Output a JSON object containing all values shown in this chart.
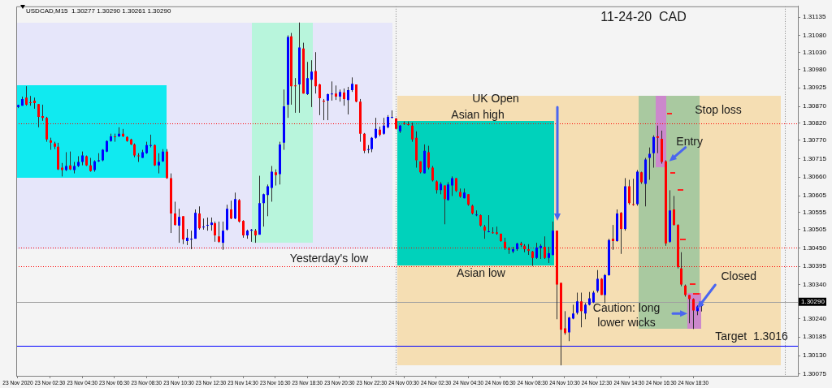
{
  "chart_data": {
    "type": "candlestick",
    "title": "11-24-20  CAD",
    "subtitle": "USDCAD,M15  1.30277 1.30290 1.30261 1.30290",
    "xlim": [
      "2020-11-23T00:24",
      "2020-11-25T01:00"
    ],
    "ylim": [
      1.3007,
      1.31167
    ],
    "xticks": [
      {
        "value": "2020-11-23T00:30",
        "label": "23 Nov 2020"
      },
      {
        "value": "2020-11-23T02:30",
        "label": "23 Nov 02:30"
      },
      {
        "value": "2020-11-23T04:30",
        "label": "23 Nov 04:30"
      },
      {
        "value": "2020-11-23T06:30",
        "label": "23 Nov 06:30"
      },
      {
        "value": "2020-11-23T08:30",
        "label": "23 Nov 08:30"
      },
      {
        "value": "2020-11-23T10:30",
        "label": "23 Nov 10:30"
      },
      {
        "value": "2020-11-23T12:30",
        "label": "23 Nov 12:30"
      },
      {
        "value": "2020-11-23T14:30",
        "label": "23 Nov 14:30"
      },
      {
        "value": "2020-11-23T16:30",
        "label": "23 Nov 16:30"
      },
      {
        "value": "2020-11-23T18:30",
        "label": "23 Nov 18:30"
      },
      {
        "value": "2020-11-23T20:30",
        "label": "23 Nov 20:30"
      },
      {
        "value": "2020-11-23T22:30",
        "label": "23 Nov 22:30"
      },
      {
        "value": "2020-11-24T00:30",
        "label": "24 Nov 00:30"
      },
      {
        "value": "2020-11-24T02:30",
        "label": "24 Nov 02:30"
      },
      {
        "value": "2020-11-24T04:30",
        "label": "24 Nov 04:30"
      },
      {
        "value": "2020-11-24T06:30",
        "label": "24 Nov 06:30"
      },
      {
        "value": "2020-11-24T08:30",
        "label": "24 Nov 08:30"
      },
      {
        "value": "2020-11-24T10:30",
        "label": "24 Nov 10:30"
      },
      {
        "value": "2020-11-24T12:30",
        "label": "24 Nov 12:30"
      },
      {
        "value": "2020-11-24T14:30",
        "label": "24 Nov 14:30"
      },
      {
        "value": "2020-11-24T16:30",
        "label": "24 Nov 16:30"
      },
      {
        "value": "2020-11-24T18:30",
        "label": "24 Nov 18:30"
      }
    ],
    "yticks": [
      1.31135,
      {
        "value": 1.3108,
        "label": "1.31080"
      },
      {
        "value": 1.3103,
        "label": "1.31030"
      },
      {
        "value": 1.3098,
        "label": "1.30980"
      },
      1.30925,
      {
        "value": 1.3087,
        "label": "1.30870"
      },
      {
        "value": 1.3082,
        "label": "1.30820"
      },
      {
        "value": 1.3077,
        "label": "1.30770"
      },
      1.30715,
      {
        "value": 1.3066,
        "label": "1.30660"
      },
      1.30605,
      1.30555,
      1.30505,
      {
        "value": 1.3045,
        "label": "1.30450"
      },
      1.30395,
      {
        "value": 1.3034,
        "label": "1.30340"
      },
      {
        "value": 1.3024,
        "label": "1.30240"
      },
      1.30185,
      {
        "value": 1.3013,
        "label": "1.30130"
      },
      1.30075
    ],
    "ref_lines": [
      {
        "axis": "x",
        "value": "2020-11-24T00:00",
        "color": "#808080",
        "line_style": "dotted"
      },
      {
        "axis": "x",
        "value": "2020-11-25T00:10",
        "color": "#808080",
        "line_style": "dotted"
      },
      {
        "axis": "y",
        "value": 1.3082,
        "label": "Asian high",
        "color": "#ff0000",
        "line_style": "dotted"
      },
      {
        "axis": "y",
        "value": 1.3045,
        "label": "Yesterday's low",
        "color": "#ff0000",
        "line_style": "dotted"
      },
      {
        "axis": "y",
        "value": 1.30395,
        "label": "Asian low",
        "color": "#ff0000",
        "line_style": "dotted"
      },
      {
        "axis": "y",
        "value": 1.3029,
        "label": "1.30290",
        "color": "#a0a0a0",
        "line_style": "solid"
      },
      {
        "axis": "y",
        "value": 1.3016,
        "label": "Target  1.3016",
        "color": "#0000ff",
        "line_style": "solid"
      }
    ],
    "annotations": [
      "UK Open",
      "Stop loss",
      {
        "text": "Entry",
        "x": "2020-11-24T17:00",
        "y": 1.30707
      },
      {
        "text": "Caution: long\nlower wicks",
        "x": "2020-11-24T18:08",
        "y": 1.30255
      },
      {
        "text": "Closed",
        "x": "2020-11-24T18:45",
        "y": 1.3027
      }
    ],
    "series": [
      {
        "x": [
          "2020-11-23T00:30",
          "2020-11-23T00:45",
          "2020-11-23T01:00",
          "2020-11-23T01:15",
          "2020-11-23T01:30",
          "2020-11-23T01:45",
          "2020-11-23T02:00",
          "2020-11-23T02:15",
          "2020-11-23T02:30",
          "2020-11-23T02:45",
          "2020-11-23T03:00",
          "2020-11-23T03:15",
          "2020-11-23T03:30",
          "2020-11-23T03:45",
          "2020-11-23T04:00",
          "2020-11-23T04:15",
          "2020-11-23T04:30",
          "2020-11-23T04:45",
          "2020-11-23T05:00",
          "2020-11-23T05:15",
          "2020-11-23T05:30",
          "2020-11-23T05:45",
          "2020-11-23T06:00",
          "2020-11-23T06:15",
          "2020-11-23T06:30",
          "2020-11-23T06:45",
          "2020-11-23T07:00",
          "2020-11-23T07:15",
          "2020-11-23T07:30",
          "2020-11-23T07:45",
          "2020-11-23T08:00",
          "2020-11-23T08:15",
          "2020-11-23T08:30",
          "2020-11-23T08:45",
          "2020-11-23T09:00",
          "2020-11-23T09:15",
          "2020-11-23T09:30",
          "2020-11-23T09:45",
          "2020-11-23T10:00",
          "2020-11-23T10:15",
          "2020-11-23T10:30",
          "2020-11-23T10:45",
          "2020-11-23T11:00",
          "2020-11-23T11:15",
          "2020-11-23T11:30",
          "2020-11-23T11:45",
          "2020-11-23T12:00",
          "2020-11-23T12:15",
          "2020-11-23T12:30",
          "2020-11-23T12:45",
          "2020-11-23T13:00",
          "2020-11-23T13:15",
          "2020-11-23T13:30",
          "2020-11-23T13:45",
          "2020-11-23T14:00",
          "2020-11-23T14:15",
          "2020-11-23T14:30",
          "2020-11-23T14:45",
          "2020-11-23T15:00",
          "2020-11-23T15:15",
          "2020-11-23T15:30",
          "2020-11-23T15:45",
          "2020-11-23T16:00",
          "2020-11-23T16:15",
          "2020-11-23T16:30",
          "2020-11-23T16:45",
          "2020-11-23T17:00",
          "2020-11-23T17:15",
          "2020-11-23T17:30",
          "2020-11-23T17:45",
          "2020-11-23T18:00",
          "2020-11-23T18:15",
          "2020-11-23T18:30",
          "2020-11-23T18:45",
          "2020-11-23T19:00",
          "2020-11-23T19:15",
          "2020-11-23T19:30",
          "2020-11-23T19:45",
          "2020-11-23T20:00",
          "2020-11-23T20:15",
          "2020-11-23T20:30",
          "2020-11-23T20:45",
          "2020-11-23T21:00",
          "2020-11-23T21:15",
          "2020-11-23T21:30",
          "2020-11-23T21:45",
          "2020-11-23T22:00",
          "2020-11-23T22:15",
          "2020-11-23T22:30",
          "2020-11-23T22:45",
          "2020-11-23T23:00",
          "2020-11-23T23:15",
          "2020-11-23T23:30",
          "2020-11-23T23:45",
          "2020-11-24T00:00",
          "2020-11-24T00:15",
          "2020-11-24T00:30",
          "2020-11-24T00:45",
          "2020-11-24T01:00",
          "2020-11-24T01:15",
          "2020-11-24T01:30",
          "2020-11-24T01:45",
          "2020-11-24T02:00",
          "2020-11-24T02:15",
          "2020-11-24T02:30",
          "2020-11-24T02:45",
          "2020-11-24T03:00",
          "2020-11-24T03:15",
          "2020-11-24T03:30",
          "2020-11-24T03:45",
          "2020-11-24T04:00",
          "2020-11-24T04:15",
          "2020-11-24T04:30",
          "2020-11-24T04:45",
          "2020-11-24T05:00",
          "2020-11-24T05:15",
          "2020-11-24T05:30",
          "2020-11-24T05:45",
          "2020-11-24T06:00",
          "2020-11-24T06:15",
          "2020-11-24T06:30",
          "2020-11-24T06:45",
          "2020-11-24T07:00",
          "2020-11-24T07:15",
          "2020-11-24T07:30",
          "2020-11-24T07:45",
          "2020-11-24T08:00",
          "2020-11-24T08:15",
          "2020-11-24T08:30",
          "2020-11-24T08:45",
          "2020-11-24T09:00",
          "2020-11-24T09:15",
          "2020-11-24T09:30",
          "2020-11-24T09:45",
          "2020-11-24T10:00",
          "2020-11-24T10:15",
          "2020-11-24T10:30",
          "2020-11-24T10:45",
          "2020-11-24T11:00",
          "2020-11-24T11:15",
          "2020-11-24T11:30",
          "2020-11-24T11:45",
          "2020-11-24T12:00",
          "2020-11-24T12:15",
          "2020-11-24T12:30",
          "2020-11-24T12:45",
          "2020-11-24T13:00",
          "2020-11-24T13:15",
          "2020-11-24T13:30",
          "2020-11-24T13:45",
          "2020-11-24T14:00",
          "2020-11-24T14:15",
          "2020-11-24T14:30",
          "2020-11-24T14:45",
          "2020-11-24T15:00",
          "2020-11-24T15:15",
          "2020-11-24T15:30",
          "2020-11-24T15:45",
          "2020-11-24T16:00",
          "2020-11-24T16:15",
          "2020-11-24T16:30",
          "2020-11-24T16:45",
          "2020-11-24T17:00",
          "2020-11-24T17:15",
          "2020-11-24T17:30",
          "2020-11-24T17:45",
          "2020-11-24T18:00",
          "2020-11-24T18:15",
          "2020-11-24T18:30",
          "2020-11-24T18:45",
          "2020-11-24T19:00"
        ],
        "ohlc": [
          [
            1.30868,
            1.30875,
            1.30865,
            1.30874
          ],
          [
            1.30872,
            1.30899,
            1.30872,
            1.30892
          ],
          [
            1.30896,
            1.3093,
            1.30872,
            1.30875
          ],
          [
            1.30882,
            1.30901,
            1.30872,
            1.30881
          ],
          [
            1.30887,
            1.30896,
            1.30863,
            1.3088
          ],
          [
            1.30877,
            1.30877,
            1.30808,
            1.30839
          ],
          [
            1.30841,
            1.30875,
            1.30827,
            1.30836
          ],
          [
            1.30836,
            1.30839,
            1.30765,
            1.30772
          ],
          [
            1.30769,
            1.30777,
            1.30741,
            1.30762
          ],
          [
            1.3076,
            1.30765,
            1.30743,
            1.3075
          ],
          [
            1.3075,
            1.30762,
            1.30681,
            1.30683
          ],
          [
            1.30688,
            1.30702,
            1.30662,
            1.30681
          ],
          [
            1.30681,
            1.30734,
            1.30678,
            1.30693
          ],
          [
            1.30695,
            1.30736,
            1.30681,
            1.30683
          ],
          [
            1.30681,
            1.30705,
            1.30671,
            1.30693
          ],
          [
            1.30693,
            1.30722,
            1.3069,
            1.30705
          ],
          [
            1.30705,
            1.30736,
            1.30695,
            1.30724
          ],
          [
            1.30722,
            1.30724,
            1.30693,
            1.30695
          ],
          [
            1.30695,
            1.30717,
            1.30676,
            1.30678
          ],
          [
            1.30681,
            1.3071,
            1.30676,
            1.30707
          ],
          [
            1.30707,
            1.30731,
            1.30705,
            1.3071
          ],
          [
            1.3071,
            1.30743,
            1.30707,
            1.30741
          ],
          [
            1.30736,
            1.30769,
            1.30734,
            1.30767
          ],
          [
            1.30767,
            1.30789,
            1.30765,
            1.30781
          ],
          [
            1.30781,
            1.30789,
            1.30765,
            1.30779
          ],
          [
            1.30781,
            1.30808,
            1.30779,
            1.30789
          ],
          [
            1.30789,
            1.30803,
            1.30779,
            1.30781
          ],
          [
            1.30779,
            1.30781,
            1.30765,
            1.30767
          ],
          [
            1.30772,
            1.30774,
            1.30755,
            1.30757
          ],
          [
            1.30757,
            1.3076,
            1.30719,
            1.30724
          ],
          [
            1.30724,
            1.30731,
            1.30705,
            1.30722
          ],
          [
            1.30717,
            1.30741,
            1.30717,
            1.30734
          ],
          [
            1.30731,
            1.30765,
            1.30729,
            1.30755
          ],
          [
            1.30755,
            1.30786,
            1.30748,
            1.30755
          ],
          [
            1.30755,
            1.30757,
            1.30693,
            1.30695
          ],
          [
            1.30695,
            1.30731,
            1.30671,
            1.30705
          ],
          [
            1.30707,
            1.30743,
            1.30705,
            1.30736
          ],
          [
            1.30736,
            1.30743,
            1.30655,
            1.30657
          ],
          [
            1.30657,
            1.30671,
            1.30494,
            1.30552
          ],
          [
            1.30552,
            1.30587,
            1.30516,
            1.30518
          ],
          [
            1.30516,
            1.30566,
            1.30465,
            1.30542
          ],
          [
            1.30544,
            1.30544,
            1.30461,
            1.30475
          ],
          [
            1.3047,
            1.30506,
            1.30458,
            1.3048
          ],
          [
            1.30477,
            1.30501,
            1.30446,
            1.30477
          ],
          [
            1.30477,
            1.30564,
            1.30477,
            1.30554
          ],
          [
            1.30552,
            1.30573,
            1.30504,
            1.30508
          ],
          [
            1.30513,
            1.30537,
            1.30504,
            1.30513
          ],
          [
            1.30518,
            1.3054,
            1.30501,
            1.30518
          ],
          [
            1.30518,
            1.3054,
            1.30501,
            1.30525
          ],
          [
            1.30523,
            1.30528,
            1.30468,
            1.30487
          ],
          [
            1.30484,
            1.30528,
            1.30465,
            1.30468
          ],
          [
            1.30465,
            1.30528,
            1.30444,
            1.30501
          ],
          [
            1.30504,
            1.30578,
            1.30501,
            1.30566
          ],
          [
            1.30564,
            1.3059,
            1.30535,
            1.30537
          ],
          [
            1.30537,
            1.30614,
            1.30535,
            1.30595
          ],
          [
            1.30592,
            1.30595,
            1.30525,
            1.30528
          ],
          [
            1.3053,
            1.30532,
            1.3048,
            1.30487
          ],
          [
            1.30487,
            1.30504,
            1.30477,
            1.30501
          ],
          [
            1.30501,
            1.30506,
            1.30468,
            1.30504
          ],
          [
            1.30501,
            1.30506,
            1.30465,
            1.30487
          ],
          [
            1.30489,
            1.30664,
            1.30489,
            1.30583
          ],
          [
            1.30583,
            1.30611,
            1.30513,
            1.30609
          ],
          [
            1.30607,
            1.30638,
            1.30544,
            1.30633
          ],
          [
            1.30628,
            1.30693,
            1.30587,
            1.30676
          ],
          [
            1.30674,
            1.30683,
            1.30635,
            1.30666
          ],
          [
            1.30669,
            1.30765,
            1.30638,
            1.30757
          ],
          [
            1.30762,
            1.3092,
            1.30741,
            1.3087
          ],
          [
            1.30875,
            1.31081,
            1.30836,
            1.31076
          ],
          [
            1.31078,
            1.31088,
            1.30875,
            1.3093
          ],
          [
            1.30932,
            1.30954,
            1.30851,
            1.3093
          ],
          [
            1.30935,
            1.31119,
            1.30851,
            1.31045
          ],
          [
            1.31042,
            1.31059,
            1.30908,
            1.30908
          ],
          [
            1.30906,
            1.31002,
            1.30904,
            1.30954
          ],
          [
            1.30949,
            1.31007,
            1.30868,
            1.30973
          ],
          [
            1.30975,
            1.31031,
            1.30908,
            1.3093
          ],
          [
            1.30935,
            1.30937,
            1.30844,
            1.30894
          ],
          [
            1.30887,
            1.30892,
            1.30829,
            1.30884
          ],
          [
            1.30887,
            1.30908,
            1.30829,
            1.30906
          ],
          [
            1.30908,
            1.30944,
            1.30887,
            1.30908
          ],
          [
            1.30908,
            1.30932,
            1.30889,
            1.30899
          ],
          [
            1.30899,
            1.3092,
            1.30884,
            1.30913
          ],
          [
            1.30911,
            1.30923,
            1.30872,
            1.30892
          ],
          [
            1.30889,
            1.30928,
            1.30846,
            1.30918
          ],
          [
            1.30918,
            1.30956,
            1.30913,
            1.30937
          ],
          [
            1.30935,
            1.30935,
            1.30882,
            1.30884
          ],
          [
            1.30884,
            1.30892,
            1.30765,
            1.30789
          ],
          [
            1.30789,
            1.30791,
            1.30731,
            1.30738
          ],
          [
            1.30743,
            1.30755,
            1.30731,
            1.30743
          ],
          [
            1.30743,
            1.30779,
            1.30734,
            1.30777
          ],
          [
            1.30777,
            1.30836,
            1.30774,
            1.30803
          ],
          [
            1.30801,
            1.3081,
            1.30781,
            1.30786
          ],
          [
            1.30789,
            1.30836,
            1.30786,
            1.30813
          ],
          [
            1.30808,
            1.30844,
            1.30805,
            1.30839
          ],
          [
            1.30839,
            1.30858,
            1.30834,
            1.30839
          ],
          [
            1.30834,
            1.30836,
            1.30801,
            1.30803
          ],
          [
            1.30796,
            1.30815,
            1.30791,
            1.30813
          ],
          [
            1.3082,
            1.30825,
            1.30815,
            1.30817
          ],
          [
            1.30817,
            1.30825,
            1.30813,
            1.30815
          ],
          [
            1.30813,
            1.30822,
            1.30765,
            1.30772
          ],
          [
            1.30777,
            1.30796,
            1.30688,
            1.3071
          ],
          [
            1.30707,
            1.30707,
            1.30671,
            1.30674
          ],
          [
            1.30671,
            1.30757,
            1.30671,
            1.30738
          ],
          [
            1.30734,
            1.30753,
            1.30683,
            1.30688
          ],
          [
            1.30688,
            1.30693,
            1.30647,
            1.3065
          ],
          [
            1.30647,
            1.3065,
            1.30611,
            1.30621
          ],
          [
            1.30621,
            1.30645,
            1.30609,
            1.3064
          ],
          [
            1.30635,
            1.30635,
            1.3052,
            1.30595
          ],
          [
            1.30592,
            1.30645,
            1.3059,
            1.30638
          ],
          [
            1.30635,
            1.30662,
            1.30604,
            1.30657
          ],
          [
            1.30657,
            1.30657,
            1.30616,
            1.30619
          ],
          [
            1.30616,
            1.30626,
            1.30599,
            1.30602
          ],
          [
            1.30597,
            1.30626,
            1.30597,
            1.30614
          ],
          [
            1.30609,
            1.30609,
            1.30575,
            1.30578
          ],
          [
            1.30575,
            1.30578,
            1.30549,
            1.30552
          ],
          [
            1.30549,
            1.30561,
            1.30544,
            1.30549
          ],
          [
            1.30547,
            1.30549,
            1.30513,
            1.30516
          ],
          [
            1.30513,
            1.30518,
            1.30477,
            1.30501
          ],
          [
            1.30499,
            1.30547,
            1.30496,
            1.30499
          ],
          [
            1.30496,
            1.30511,
            1.30492,
            1.30494
          ],
          [
            1.30496,
            1.30513,
            1.30489,
            1.30492
          ],
          [
            1.30492,
            1.30492,
            1.30468,
            1.3047
          ],
          [
            1.30468,
            1.3048,
            1.30444,
            1.30449
          ],
          [
            1.30449,
            1.30453,
            1.30432,
            1.30444
          ],
          [
            1.30439,
            1.30453,
            1.30434,
            1.30446
          ],
          [
            1.30446,
            1.30465,
            1.30441,
            1.30463
          ],
          [
            1.30463,
            1.30468,
            1.30453,
            1.30458
          ],
          [
            1.30456,
            1.30461,
            1.30437,
            1.30446
          ],
          [
            1.30446,
            1.30461,
            1.30429,
            1.30441
          ],
          [
            1.30439,
            1.30441,
            1.30396,
            1.3042
          ],
          [
            1.3042,
            1.30465,
            1.30417,
            1.30451
          ],
          [
            1.30449,
            1.30461,
            1.30417,
            1.30456
          ],
          [
            1.30453,
            1.30484,
            1.30417,
            1.3042
          ],
          [
            1.3042,
            1.30453,
            1.30405,
            1.30434
          ],
          [
            1.30429,
            1.30528,
            1.30427,
            1.30501
          ],
          [
            1.30501,
            1.30501,
            1.30238,
            1.30341
          ],
          [
            1.30346,
            1.30346,
            1.30101,
            1.30207
          ],
          [
            1.30211,
            1.30262,
            1.30192,
            1.30197
          ],
          [
            1.30199,
            1.30245,
            1.30173,
            1.30243
          ],
          [
            1.3024,
            1.30281,
            1.30238,
            1.30255
          ],
          [
            1.30257,
            1.30317,
            1.30252,
            1.30291
          ],
          [
            1.30291,
            1.30317,
            1.30214,
            1.30262
          ],
          [
            1.30255,
            1.30286,
            1.30238,
            1.30281
          ],
          [
            1.30281,
            1.30319,
            1.30279,
            1.303
          ],
          [
            1.30288,
            1.30322,
            1.30286,
            1.30317
          ],
          [
            1.30322,
            1.30384,
            1.30317,
            1.30358
          ],
          [
            1.30358,
            1.3036,
            1.3031,
            1.3031
          ],
          [
            1.3031,
            1.30372,
            1.30286,
            1.30369
          ],
          [
            1.30369,
            1.30477,
            1.30367,
            1.30473
          ],
          [
            1.30477,
            1.30518,
            1.30444,
            1.3047
          ],
          [
            1.3047,
            1.30564,
            1.30468,
            1.30552
          ],
          [
            1.30554,
            1.30556,
            1.30432,
            1.30506
          ],
          [
            1.30506,
            1.30657,
            1.30501,
            1.30633
          ],
          [
            1.30633,
            1.30652,
            1.30578,
            1.30583
          ],
          [
            1.3058,
            1.30655,
            1.30575,
            1.30578
          ],
          [
            1.3058,
            1.30681,
            1.30575,
            1.30676
          ],
          [
            1.30674,
            1.30676,
            1.3064,
            1.30645
          ],
          [
            1.3064,
            1.30717,
            1.30573,
            1.30712
          ],
          [
            1.30717,
            1.30748,
            1.30652,
            1.30729
          ],
          [
            1.30731,
            1.30784,
            1.30688,
            1.30779
          ],
          [
            1.30781,
            1.30813,
            1.30731,
            1.30777
          ],
          [
            1.30774,
            1.30798,
            1.307,
            1.30705
          ],
          [
            1.30707,
            1.3071,
            1.30456,
            1.30463
          ],
          [
            1.30468,
            1.30621,
            1.30465,
            1.30561
          ],
          [
            1.30564,
            1.30604,
            1.30516,
            1.30518
          ],
          [
            1.30518,
            1.3052,
            1.30389,
            1.30393
          ],
          [
            1.30389,
            1.30437,
            1.30336,
            1.30341
          ],
          [
            1.30338,
            1.30341,
            1.30305,
            1.3031
          ],
          [
            1.3031,
            1.3031,
            1.30226,
            1.30298
          ],
          [
            1.30298,
            1.303,
            1.30209,
            1.30264
          ],
          [
            1.30262,
            1.30279,
            1.3025,
            1.30276
          ],
          [
            1.30277,
            1.3029,
            1.30261,
            1.3029
          ]
        ],
        "colors": [
          "#0000ff",
          "#0000ff",
          "#ff0000",
          "#ff0000",
          "#ff0000",
          "#ff0000",
          "#ff0000",
          "#ff0000",
          "#ff0000",
          "#ff0000",
          "#ff0000",
          "#ff0000",
          "#0000ff",
          "#ff0000",
          "#0000ff",
          "#0000ff",
          "#0000ff",
          "#ff0000",
          "#ff0000",
          "#0000ff",
          "#0000ff",
          "#0000ff",
          "#0000ff",
          "#0000ff",
          "#ff0000",
          "#0000ff",
          "#ff0000",
          "#ff0000",
          "#ff0000",
          "#ff0000",
          "#ff0000",
          "#0000ff",
          "#0000ff",
          "#0000ff",
          "#ff0000",
          "#0000ff",
          "#0000ff",
          "#ff0000",
          "#ff0000",
          "#ff0000",
          "#0000ff",
          "#ff0000",
          "#0000ff",
          "#0000ff",
          "#0000ff",
          "#ff0000",
          "#0000ff",
          "#0000ff",
          "#0000ff",
          "#ff0000",
          "#ff0000",
          "#0000ff",
          "#0000ff",
          "#ff0000",
          "#0000ff",
          "#ff0000",
          "#ff0000",
          "#0000ff",
          "#0000ff",
          "#ff0000",
          "#0000ff",
          "#0000ff",
          "#0000ff",
          "#0000ff",
          "#ff0000",
          "#0000ff",
          "#0000ff",
          "#0000ff",
          "#ff0000",
          "#ff0000",
          "#0000ff",
          "#ff0000",
          "#0000ff",
          "#0000ff",
          "#ff0000",
          "#ff0000",
          "#ff0000",
          "#0000ff",
          "#0000ff",
          "#ff0000",
          "#0000ff",
          "#ff0000",
          "#0000ff",
          "#0000ff",
          "#ff0000",
          "#ff0000",
          "#ff0000",
          "#0000ff",
          "#0000ff",
          "#0000ff",
          "#ff0000",
          "#0000ff",
          "#0000ff",
          "#0000ff",
          "#ff0000",
          "#0000ff",
          "#ff0000",
          "#ff0000",
          "#ff0000",
          "#ff0000",
          "#ff0000",
          "#0000ff",
          "#ff0000",
          "#ff0000",
          "#ff0000",
          "#0000ff",
          "#ff0000",
          "#0000ff",
          "#0000ff",
          "#ff0000",
          "#ff0000",
          "#0000ff",
          "#ff0000",
          "#ff0000",
          "#0000ff",
          "#ff0000",
          "#ff0000",
          "#0000ff",
          "#ff0000",
          "#ff0000",
          "#ff0000",
          "#ff0000",
          "#ff0000",
          "#0000ff",
          "#0000ff",
          "#ff0000",
          "#ff0000",
          "#ff0000",
          "#ff0000",
          "#0000ff",
          "#0000ff",
          "#ff0000",
          "#0000ff",
          "#0000ff",
          "#ff0000",
          "#ff0000",
          "#ff0000",
          "#0000ff",
          "#0000ff",
          "#0000ff",
          "#ff0000",
          "#0000ff",
          "#0000ff",
          "#0000ff",
          "#0000ff",
          "#ff0000",
          "#0000ff",
          "#0000ff",
          "#ff0000",
          "#0000ff",
          "#ff0000",
          "#0000ff",
          "#ff0000",
          "#ff0000",
          "#0000ff",
          "#ff0000",
          "#0000ff",
          "#0000ff",
          "#0000ff",
          "#ff0000",
          "#ff0000",
          "#ff0000",
          "#0000ff",
          "#ff0000",
          "#ff0000",
          "#ff0000",
          "#ff0000",
          "#ff0000",
          "#ff0000",
          "#0000ff",
          "#0000ff"
        ]
      }
    ]
  }
}
